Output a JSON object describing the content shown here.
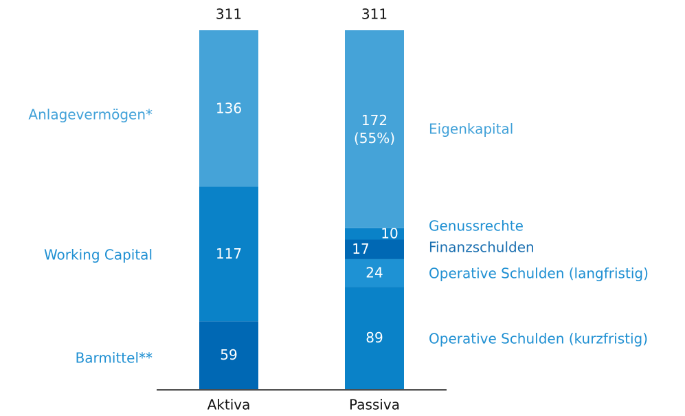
{
  "chart_data": {
    "type": "stacked_bar",
    "categories": [
      "Aktiva",
      "Passiva"
    ],
    "totals": [
      311,
      311
    ],
    "ylim": [
      0,
      312
    ],
    "series": [
      {
        "name": "Barmittel**",
        "color": "#0068b4",
        "values": [
          59,
          null
        ]
      },
      {
        "name": "Working Capital",
        "color": "#0a82c8",
        "values": [
          117,
          null
        ]
      },
      {
        "name": "Anlagevermögen*",
        "color": "#45a3d8",
        "values": [
          136,
          null
        ]
      },
      {
        "name": "Operative Schulden (kurzfristig)",
        "color": "#0a82c8",
        "values": [
          null,
          89
        ]
      },
      {
        "name": "Operative Schulden (langfristig)",
        "color": "#1e92d4",
        "values": [
          null,
          24
        ]
      },
      {
        "name": "Finanzschulden",
        "color": "#0068b4",
        "values": [
          null,
          17
        ]
      },
      {
        "name": "Genussrechte",
        "color": "#0a82c8",
        "values": [
          null,
          10
        ]
      },
      {
        "name": "Eigenkapital",
        "color": "#45a3d8",
        "values": [
          null,
          172
        ],
        "value_labels": [
          null,
          "172 (55%)"
        ]
      }
    ]
  }
}
